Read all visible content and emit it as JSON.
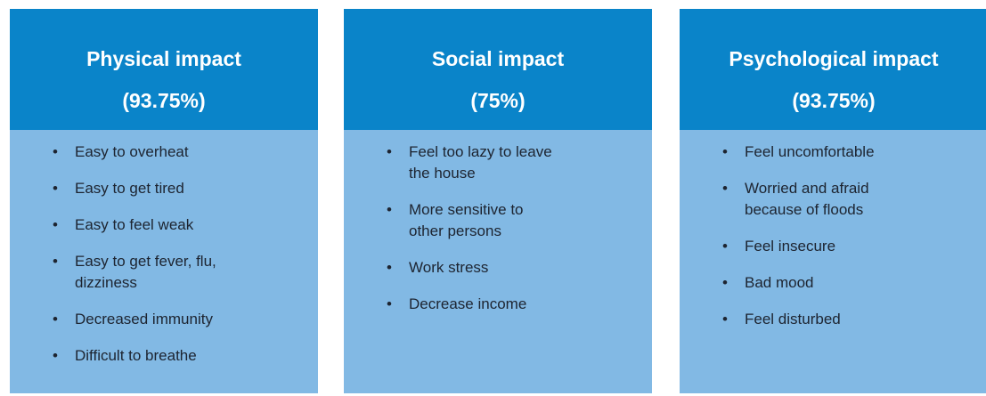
{
  "cards": [
    {
      "title": "Physical impact",
      "share": "(93.75%)",
      "items": [
        "Easy to overheat",
        "Easy to get tired",
        "Easy to feel weak",
        "Easy to get fever, flu,\ndizziness",
        "Decreased immunity",
        "Difficult to breathe"
      ]
    },
    {
      "title": "Social impact",
      "share": "(75%)",
      "items": [
        "Feel too lazy to leave\nthe house",
        "More sensitive to\nother persons",
        "Work stress",
        "Decrease income"
      ]
    },
    {
      "title": "Psychological impact",
      "share": "(93.75%)",
      "items": [
        "Feel uncomfortable",
        "Worried and afraid\nbecause of floods",
        "Feel insecure",
        "Bad mood",
        "Feel disturbed"
      ]
    }
  ]
}
